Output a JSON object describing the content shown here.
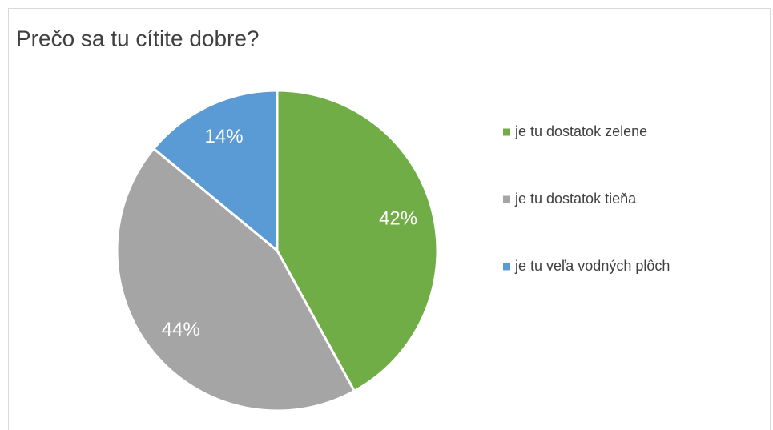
{
  "chart_data": {
    "type": "pie",
    "title": "Prečo sa tu cítite dobre?",
    "categories": [
      "je tu dostatok zelene",
      "je tu dostatok tieňa",
      "je tu veľa vodných plôch"
    ],
    "values": [
      42,
      44,
      14
    ],
    "value_labels": [
      "42%",
      "44%",
      "14%"
    ],
    "colors": [
      "#70ad47",
      "#a5a5a5",
      "#5b9bd5"
    ],
    "legend": "right"
  }
}
